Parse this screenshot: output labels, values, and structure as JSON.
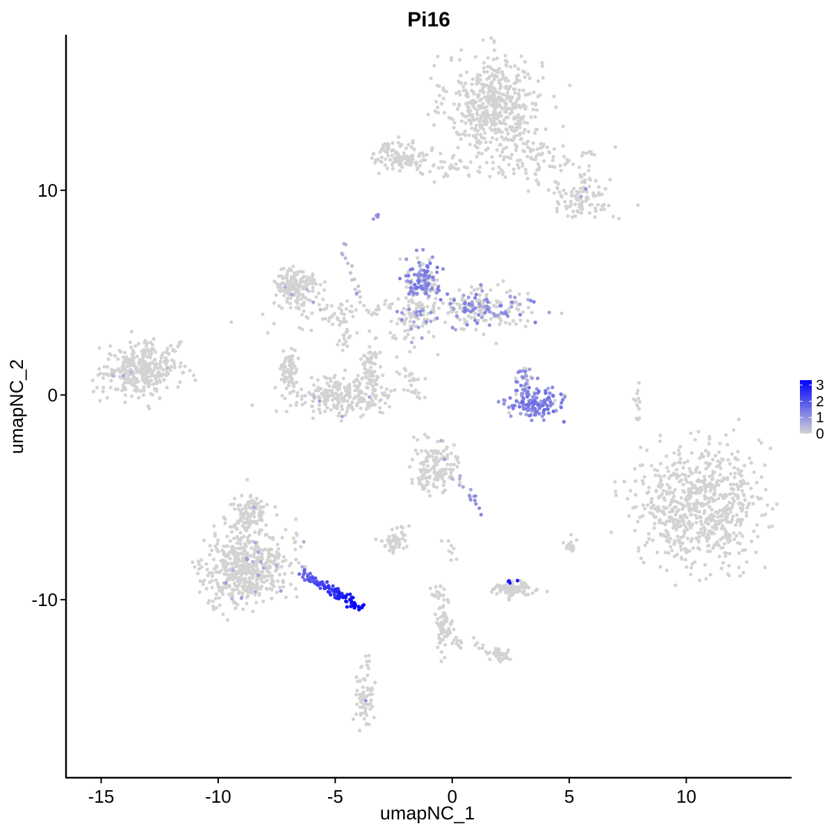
{
  "chart_data": {
    "type": "scatter",
    "title": "Pi16",
    "xlabel": "umapNC_1",
    "ylabel": "umapNC_2",
    "xlim": [
      -16.5,
      14.5
    ],
    "ylim": [
      -18.7,
      17.6
    ],
    "x_ticks": [
      -15,
      -10,
      -5,
      0,
      5,
      10
    ],
    "x_tick_labels": [
      "-15",
      "-10",
      "-5",
      "0",
      "5",
      "10"
    ],
    "y_ticks": [
      -10,
      0,
      10
    ],
    "y_tick_labels": [
      "-10",
      "0",
      "10"
    ],
    "grid": false,
    "legend": {
      "position": "right",
      "type": "colorbar",
      "ticks": [
        0,
        1,
        2,
        3
      ],
      "tick_labels": [
        "0",
        "1",
        "2",
        "3"
      ],
      "range": [
        0,
        3.3
      ],
      "color_low": "#d3d3d3",
      "color_high": "#0000ff"
    },
    "clusters": [
      {
        "x": 1.8,
        "y": 14.2,
        "sx": 1.0,
        "sy": 1.2,
        "n": 520,
        "expr": 0,
        "expr_frac": 0
      },
      {
        "x": 3.5,
        "y": 11.6,
        "sx": 1.2,
        "sy": 0.5,
        "n": 70,
        "expr": 0,
        "expr_frac": 0
      },
      {
        "x": 5.6,
        "y": 9.5,
        "sx": 0.6,
        "sy": 0.5,
        "n": 90,
        "expr": 0.8,
        "expr_frac": 0.02
      },
      {
        "x": -2.2,
        "y": 11.7,
        "sx": 0.6,
        "sy": 0.35,
        "n": 110,
        "expr": 0,
        "expr_frac": 0
      },
      {
        "x": 0.3,
        "y": 11.1,
        "sx": 1.1,
        "sy": 0.25,
        "n": 40,
        "expr": 0,
        "expr_frac": 0
      },
      {
        "x": -13.3,
        "y": 1.2,
        "sx": 0.8,
        "sy": 0.65,
        "n": 330,
        "expr": 0.6,
        "expr_frac": 0.01
      },
      {
        "x": -6.7,
        "y": 5.3,
        "sx": 0.5,
        "sy": 0.45,
        "n": 160,
        "expr": 0.6,
        "expr_frac": 0.02
      },
      {
        "x": -5.3,
        "y": 4.0,
        "sx": 1.0,
        "sy": 0.5,
        "n": 60,
        "expr": 0.6,
        "expr_frac": 0.02
      },
      {
        "x": -4.7,
        "y": 0.0,
        "sx": 1.2,
        "sy": 0.5,
        "n": 250,
        "expr": 0.6,
        "expr_frac": 0.02
      },
      {
        "x": -7.0,
        "y": 1.2,
        "sx": 0.2,
        "sy": 0.6,
        "n": 70,
        "expr": 0,
        "expr_frac": 0
      },
      {
        "x": -3.5,
        "y": 1.2,
        "sx": 0.2,
        "sy": 0.6,
        "n": 60,
        "expr": 0,
        "expr_frac": 0
      },
      {
        "x": -1.2,
        "y": 5.7,
        "sx": 0.35,
        "sy": 0.5,
        "n": 130,
        "expr": 1.1,
        "expr_frac": 0.6
      },
      {
        "x": 1.2,
        "y": 4.2,
        "sx": 1.1,
        "sy": 0.5,
        "n": 210,
        "expr": 1.0,
        "expr_frac": 0.35
      },
      {
        "x": -1.6,
        "y": 3.8,
        "sx": 0.5,
        "sy": 0.7,
        "n": 70,
        "expr": 0.9,
        "expr_frac": 0.2
      },
      {
        "x": 3.6,
        "y": -0.4,
        "sx": 0.5,
        "sy": 0.4,
        "n": 130,
        "expr": 1.2,
        "expr_frac": 0.8
      },
      {
        "x": 3.1,
        "y": 0.7,
        "sx": 0.2,
        "sy": 0.35,
        "n": 35,
        "expr": 1.0,
        "expr_frac": 0.6
      },
      {
        "x": 10.6,
        "y": -5.4,
        "sx": 1.3,
        "sy": 1.4,
        "n": 700,
        "expr": 0,
        "expr_frac": 0
      },
      {
        "x": -0.8,
        "y": -3.6,
        "sx": 0.5,
        "sy": 0.6,
        "n": 140,
        "expr": 0.6,
        "expr_frac": 0.02
      },
      {
        "x": -8.8,
        "y": -8.5,
        "sx": 0.9,
        "sy": 0.9,
        "n": 520,
        "expr": 0.7,
        "expr_frac": 0.03
      },
      {
        "x": -8.7,
        "y": -5.8,
        "sx": 0.4,
        "sy": 0.5,
        "n": 110,
        "expr": 0.6,
        "expr_frac": 0.02
      },
      {
        "x": -2.6,
        "y": -7.2,
        "sx": 0.25,
        "sy": 0.25,
        "n": 40,
        "expr": 0,
        "expr_frac": 0
      },
      {
        "x": 2.6,
        "y": -9.5,
        "sx": 0.45,
        "sy": 0.2,
        "n": 80,
        "expr": 0,
        "expr_frac": 0
      },
      {
        "x": -0.3,
        "y": -11.4,
        "sx": 0.15,
        "sy": 0.6,
        "n": 40,
        "expr": 0,
        "expr_frac": 0
      },
      {
        "x": 2.1,
        "y": -12.7,
        "sx": 0.2,
        "sy": 0.2,
        "n": 30,
        "expr": 0,
        "expr_frac": 0
      },
      {
        "x": -3.7,
        "y": -15.0,
        "sx": 0.2,
        "sy": 0.6,
        "n": 60,
        "expr": 0.7,
        "expr_frac": 0.04
      },
      {
        "x": 5.1,
        "y": -7.4,
        "sx": 0.15,
        "sy": 0.2,
        "n": 12,
        "expr": 0,
        "expr_frac": 0
      },
      {
        "x": 7.9,
        "y": -0.3,
        "sx": 0.1,
        "sy": 0.5,
        "n": 14,
        "expr": 0,
        "expr_frac": 0
      }
    ],
    "strands": [
      {
        "x0": -6.4,
        "y0": -8.7,
        "x1": -3.9,
        "y1": -10.4,
        "n": 110,
        "spread": 0.12,
        "expr_from": 1.6,
        "expr_to": 3.3
      },
      {
        "x0": -4.6,
        "y0": 4.6,
        "x1": -4.6,
        "y1": 2.2,
        "n": 20,
        "spread": 0.12,
        "expr_from": 0,
        "expr_to": 0
      },
      {
        "x0": -4.8,
        "y0": 7.5,
        "x1": -3.9,
        "y1": 4.5,
        "n": 14,
        "spread": 0.15,
        "expr_from": 0.6,
        "expr_to": 0
      },
      {
        "x0": -3.6,
        "y0": 4.0,
        "x1": -2.5,
        "y1": 4.5,
        "n": 14,
        "spread": 0.15,
        "expr_from": 0,
        "expr_to": 0
      },
      {
        "x0": -3.3,
        "y0": 8.6,
        "x1": -3.1,
        "y1": 8.8,
        "n": 5,
        "spread": 0.05,
        "expr_from": 1.0,
        "expr_to": 1.0
      },
      {
        "x0": -2.4,
        "y0": 2.7,
        "x1": -1.2,
        "y1": 4.5,
        "n": 18,
        "spread": 0.15,
        "expr_from": 0,
        "expr_to": 0
      },
      {
        "x0": -2.3,
        "y0": 1.2,
        "x1": -1.4,
        "y1": 0.7,
        "n": 12,
        "spread": 0.1,
        "expr_from": 0,
        "expr_to": 0
      },
      {
        "x0": -1.8,
        "y0": 0.3,
        "x1": -1.2,
        "y1": -0.2,
        "n": 8,
        "spread": 0.08,
        "expr_from": 0,
        "expr_to": 0
      },
      {
        "x0": 2.1,
        "y0": -0.3,
        "x1": 3.5,
        "y1": -0.8,
        "n": 16,
        "spread": 0.15,
        "expr_from": 0.9,
        "expr_to": 1.2
      },
      {
        "x0": 0.2,
        "y0": -4.0,
        "x1": 1.2,
        "y1": -5.6,
        "n": 16,
        "spread": 0.15,
        "expr_from": 0.5,
        "expr_to": 1.2
      },
      {
        "x0": -1.8,
        "y0": -6.2,
        "x1": -2.7,
        "y1": -7.5,
        "n": 12,
        "spread": 0.15,
        "expr_from": 0,
        "expr_to": 0
      },
      {
        "x0": -0.8,
        "y0": -9.3,
        "x1": -0.2,
        "y1": -12.0,
        "n": 28,
        "spread": 0.15,
        "expr_from": 0,
        "expr_to": 0
      },
      {
        "x0": 0.1,
        "y0": -11.9,
        "x1": 2.2,
        "y1": -12.7,
        "n": 22,
        "spread": 0.12,
        "expr_from": 0,
        "expr_to": 0
      },
      {
        "x0": 5.9,
        "y0": 12.0,
        "x1": 5.6,
        "y1": 10.0,
        "n": 18,
        "spread": 0.15,
        "expr_from": 0,
        "expr_to": 0
      },
      {
        "x0": 2.5,
        "y0": 11.2,
        "x1": 4.8,
        "y1": 10.0,
        "n": 16,
        "spread": 0.2,
        "expr_from": 0,
        "expr_to": 0
      },
      {
        "x0": -11.5,
        "y0": 2.8,
        "x1": -12.3,
        "y1": 1.8,
        "n": 8,
        "spread": 0.1,
        "expr_from": 0,
        "expr_to": 0
      },
      {
        "x0": 4.7,
        "y0": -7.1,
        "x1": 5.2,
        "y1": -7.6,
        "n": 6,
        "spread": 0.08,
        "expr_from": 0,
        "expr_to": 0
      },
      {
        "x0": -3.6,
        "y0": -12.5,
        "x1": -3.9,
        "y1": -14.0,
        "n": 8,
        "spread": 0.1,
        "expr_from": 0,
        "expr_to": 0
      },
      {
        "x0": 2.4,
        "y0": -9.1,
        "x1": 2.7,
        "y1": -9.2,
        "n": 4,
        "spread": 0.05,
        "expr_from": 2.8,
        "expr_to": 2.8
      },
      {
        "x0": -0.4,
        "y0": -7.0,
        "x1": 0.2,
        "y1": -8.0,
        "n": 8,
        "spread": 0.12,
        "expr_from": 0,
        "expr_to": 0
      },
      {
        "x0": -0.3,
        "y0": -10.5,
        "x1": -0.6,
        "y1": -9.0,
        "n": 10,
        "spread": 0.12,
        "expr_from": 0,
        "expr_to": 0
      }
    ],
    "point_color_low": "#d3d3d3",
    "point_color_high": "#0000ff"
  }
}
